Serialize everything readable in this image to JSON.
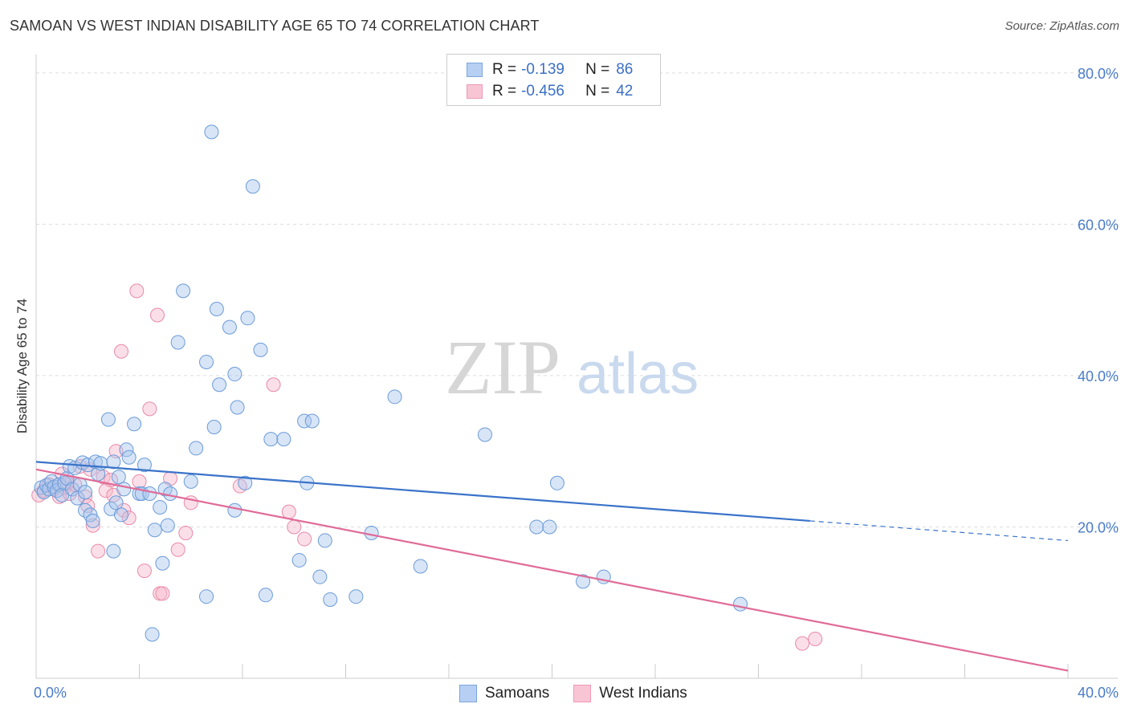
{
  "header": {
    "title": "SAMOAN VS WEST INDIAN DISABILITY AGE 65 TO 74 CORRELATION CHART",
    "source": "Source: ZipAtlas.com"
  },
  "watermark": {
    "zip": "ZIP",
    "atlas": "atlas"
  },
  "legend": {
    "samoans": {
      "r_label": "R =",
      "r_value": "-0.139",
      "n_label": "N =",
      "n_value": "86"
    },
    "west_indians": {
      "r_label": "R =",
      "r_value": "-0.456",
      "n_label": "N =",
      "n_value": "42"
    }
  },
  "bottom_legend": {
    "samoans": "Samoans",
    "west_indians": "West Indians"
  },
  "colors": {
    "samoans_fill": "#a9c6ee",
    "samoans_stroke": "#6b9bd8",
    "samoans_line": "#3a73c9",
    "west_fill": "#f6b8cb",
    "west_stroke": "#e88aa8",
    "west_line": "#e06b97",
    "grid": "#dddddd",
    "axis_text": "#4a7cc7"
  },
  "chart_data": {
    "type": "scatter",
    "title": "SAMOAN VS WEST INDIAN DISABILITY AGE 65 TO 74 CORRELATION CHART",
    "xlabel": "",
    "ylabel": "Disability Age 65 to 74",
    "xlim": [
      0,
      40
    ],
    "ylim": [
      0,
      82
    ],
    "x_tick_labels": [
      "0.0%",
      "40.0%"
    ],
    "y_ticks": [
      20,
      40,
      60,
      80
    ],
    "y_tick_labels": [
      "20.0%",
      "40.0%",
      "60.0%",
      "80.0%"
    ],
    "series": [
      {
        "name": "Samoans",
        "r": -0.139,
        "n": 86,
        "trend": {
          "x0": 0,
          "y0": 28.6,
          "x1": 30,
          "y1": 20.8,
          "dashed_to_x": 40,
          "dashed_y": 18.2
        },
        "points": [
          [
            0.2,
            25.2
          ],
          [
            0.3,
            24.6
          ],
          [
            0.4,
            25.5
          ],
          [
            0.5,
            25.0
          ],
          [
            0.6,
            26.0
          ],
          [
            0.7,
            25.3
          ],
          [
            0.8,
            24.8
          ],
          [
            0.9,
            25.6
          ],
          [
            1.0,
            24.2
          ],
          [
            1.1,
            25.8
          ],
          [
            1.2,
            26.4
          ],
          [
            1.3,
            28.0
          ],
          [
            1.4,
            25.0
          ],
          [
            1.5,
            27.8
          ],
          [
            1.6,
            23.8
          ],
          [
            1.7,
            25.6
          ],
          [
            1.8,
            28.5
          ],
          [
            1.9,
            22.2
          ],
          [
            2.0,
            28.2
          ],
          [
            2.1,
            21.6
          ],
          [
            2.2,
            20.8
          ],
          [
            2.3,
            28.6
          ],
          [
            2.4,
            27.0
          ],
          [
            2.5,
            28.4
          ],
          [
            2.8,
            34.2
          ],
          [
            2.9,
            22.4
          ],
          [
            3.0,
            16.8
          ],
          [
            3.1,
            23.2
          ],
          [
            3.2,
            26.6
          ],
          [
            3.3,
            21.6
          ],
          [
            3.4,
            25.0
          ],
          [
            3.5,
            30.2
          ],
          [
            3.6,
            29.2
          ],
          [
            3.8,
            33.6
          ],
          [
            4.0,
            24.4
          ],
          [
            4.1,
            24.4
          ],
          [
            4.2,
            28.2
          ],
          [
            4.4,
            24.4
          ],
          [
            4.5,
            5.8
          ],
          [
            4.6,
            19.6
          ],
          [
            4.8,
            22.6
          ],
          [
            4.9,
            15.2
          ],
          [
            5.0,
            25.0
          ],
          [
            5.1,
            20.2
          ],
          [
            5.2,
            24.4
          ],
          [
            5.5,
            44.4
          ],
          [
            5.7,
            51.2
          ],
          [
            6.0,
            26.0
          ],
          [
            6.2,
            30.4
          ],
          [
            6.6,
            41.8
          ],
          [
            6.6,
            10.8
          ],
          [
            6.8,
            72.2
          ],
          [
            6.9,
            33.2
          ],
          [
            7.0,
            48.8
          ],
          [
            7.1,
            38.8
          ],
          [
            7.5,
            46.4
          ],
          [
            7.7,
            40.2
          ],
          [
            7.7,
            22.2
          ],
          [
            7.8,
            35.8
          ],
          [
            8.1,
            25.8
          ],
          [
            8.2,
            47.6
          ],
          [
            8.4,
            65.0
          ],
          [
            8.7,
            43.4
          ],
          [
            8.9,
            11.0
          ],
          [
            9.1,
            31.6
          ],
          [
            9.6,
            31.6
          ],
          [
            10.2,
            15.6
          ],
          [
            10.4,
            34.0
          ],
          [
            10.5,
            25.8
          ],
          [
            10.7,
            34.0
          ],
          [
            11.0,
            13.4
          ],
          [
            11.2,
            18.2
          ],
          [
            11.4,
            10.4
          ],
          [
            12.4,
            10.8
          ],
          [
            13.0,
            19.2
          ],
          [
            13.9,
            37.2
          ],
          [
            14.9,
            14.8
          ],
          [
            17.4,
            32.2
          ],
          [
            19.4,
            20.0
          ],
          [
            19.9,
            20.0
          ],
          [
            20.2,
            25.8
          ],
          [
            21.2,
            12.8
          ],
          [
            22.0,
            13.4
          ],
          [
            27.3,
            9.8
          ],
          [
            3.0,
            28.6
          ],
          [
            1.9,
            24.6
          ]
        ]
      },
      {
        "name": "West Indians",
        "r": -0.456,
        "n": 42,
        "trend": {
          "x0": 0,
          "y0": 27.6,
          "x1": 40,
          "y1": 1.0
        },
        "points": [
          [
            0.1,
            24.2
          ],
          [
            0.3,
            24.8
          ],
          [
            0.5,
            25.6
          ],
          [
            0.7,
            25.0
          ],
          [
            0.9,
            24.0
          ],
          [
            1.0,
            27.0
          ],
          [
            1.1,
            25.2
          ],
          [
            1.3,
            24.4
          ],
          [
            1.5,
            25.6
          ],
          [
            1.7,
            28.0
          ],
          [
            1.9,
            24.0
          ],
          [
            2.0,
            22.8
          ],
          [
            2.2,
            20.2
          ],
          [
            2.4,
            16.8
          ],
          [
            2.6,
            26.6
          ],
          [
            2.7,
            24.8
          ],
          [
            2.9,
            26.2
          ],
          [
            3.0,
            24.2
          ],
          [
            3.1,
            30.0
          ],
          [
            3.3,
            43.2
          ],
          [
            3.4,
            22.2
          ],
          [
            3.6,
            21.2
          ],
          [
            3.9,
            51.2
          ],
          [
            4.0,
            26.0
          ],
          [
            4.2,
            14.2
          ],
          [
            4.4,
            35.6
          ],
          [
            4.7,
            48.0
          ],
          [
            4.8,
            11.2
          ],
          [
            4.9,
            11.2
          ],
          [
            5.2,
            26.4
          ],
          [
            5.5,
            17.0
          ],
          [
            5.8,
            19.2
          ],
          [
            6.0,
            23.2
          ],
          [
            7.9,
            25.4
          ],
          [
            9.2,
            38.8
          ],
          [
            9.8,
            22.0
          ],
          [
            10.0,
            20.0
          ],
          [
            10.4,
            18.4
          ],
          [
            29.7,
            4.6
          ],
          [
            30.2,
            5.2
          ],
          [
            1.2,
            25.8
          ],
          [
            2.1,
            27.6
          ]
        ]
      }
    ]
  }
}
